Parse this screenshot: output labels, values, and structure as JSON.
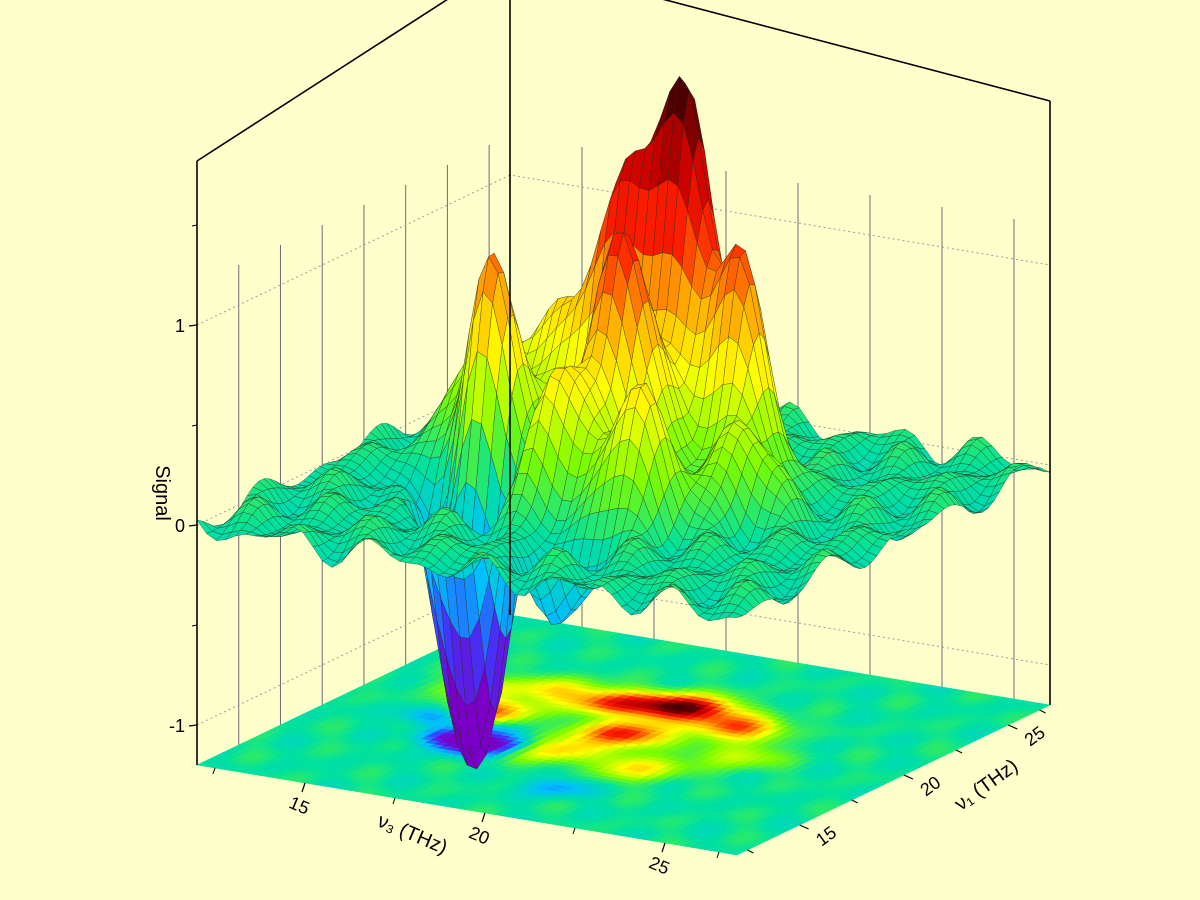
{
  "chart_data": {
    "type": "surface3d",
    "title": "",
    "zlabel": "Signal",
    "xlabel": "ν₃ (THz)",
    "ylabel": "ν₁ (THz)",
    "xlim": [
      12,
      27
    ],
    "ylim": [
      12,
      27
    ],
    "zlim": [
      -1.2,
      2.0
    ],
    "z_ticks": [
      "1",
      "0",
      "-1"
    ],
    "x_ticks": [
      "15",
      "20",
      "25"
    ],
    "y_ticks": [
      "15",
      "20",
      "25"
    ],
    "floor_contour": true,
    "colormap": [
      "#7a00c8",
      "#3b3bff",
      "#00bfff",
      "#00e0a0",
      "#7cfc00",
      "#ffff00",
      "#ffa500",
      "#ff1f00",
      "#c80000",
      "#4a0000"
    ],
    "features": [
      {
        "kind": "peak",
        "x": 19.6,
        "y": 22.3,
        "z": 1.85
      },
      {
        "kind": "peak",
        "x": 19.5,
        "y": 19.6,
        "z": 1.35
      },
      {
        "kind": "peak",
        "x": 18.0,
        "y": 21.8,
        "z": 1.22
      },
      {
        "kind": "peak",
        "x": 15.8,
        "y": 19.6,
        "z": 1.02
      },
      {
        "kind": "peak",
        "x": 21.5,
        "y": 21.5,
        "z": 1.15
      },
      {
        "kind": "peak",
        "x": 18.6,
        "y": 17.6,
        "z": 0.85
      },
      {
        "kind": "peak",
        "x": 21.2,
        "y": 17.3,
        "z": 0.72
      },
      {
        "kind": "peak",
        "x": 22.8,
        "y": 19.4,
        "z": 0.5
      },
      {
        "kind": "peak",
        "x": 16.2,
        "y": 22.0,
        "z": 0.62
      },
      {
        "kind": "peak",
        "x": 14.6,
        "y": 21.2,
        "z": 0.45
      },
      {
        "kind": "valley",
        "x": 16.2,
        "y": 17.2,
        "z": -0.92
      },
      {
        "kind": "valley",
        "x": 17.0,
        "y": 16.8,
        "z": -0.8
      },
      {
        "kind": "valley",
        "x": 17.6,
        "y": 17.5,
        "z": -0.68
      },
      {
        "kind": "valley",
        "x": 14.8,
        "y": 18.6,
        "z": -0.55
      },
      {
        "kind": "valley",
        "x": 20.4,
        "y": 14.8,
        "z": -0.42
      },
      {
        "kind": "valley",
        "x": 16.6,
        "y": 18.2,
        "z": -0.4
      }
    ]
  }
}
